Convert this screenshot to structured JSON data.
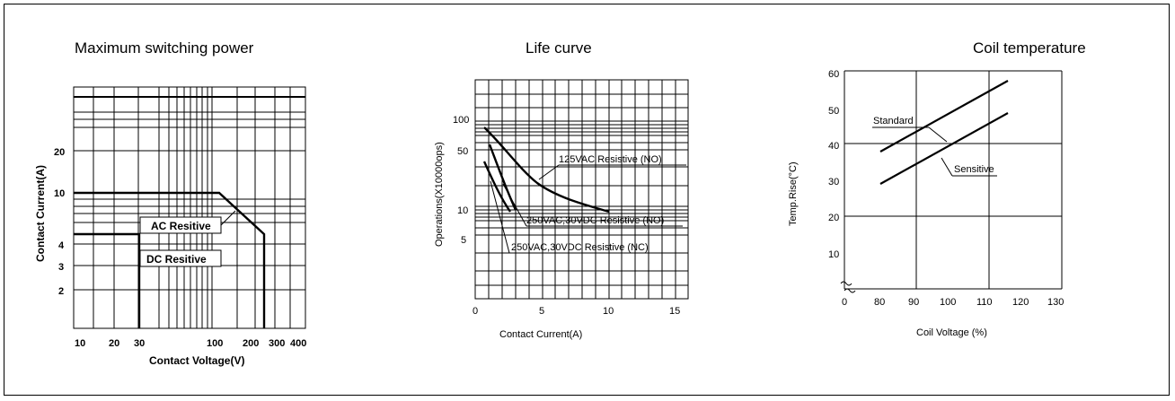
{
  "chart_data": [
    {
      "type": "line",
      "title": "Maximum switching power",
      "xlabel": "Contact Voltage(V)",
      "ylabel": "Contact Current(A)",
      "x_scale": "log",
      "y_scale": "log",
      "xticks": [
        "10",
        "20",
        "30",
        "100",
        "200",
        "300",
        "400"
      ],
      "yticks": [
        "20",
        "10",
        "4",
        "3",
        "2"
      ],
      "series": [
        {
          "name": "AC Resitive",
          "x": [
            10,
            120,
            250,
            250
          ],
          "y": [
            10,
            10,
            5,
            1
          ]
        },
        {
          "name": "DC Resitive",
          "x": [
            10,
            30,
            30
          ],
          "y": [
            5,
            5,
            1
          ]
        }
      ]
    },
    {
      "type": "line",
      "title": "Life curve",
      "xlabel": "Contact Current(A)",
      "ylabel": "Operations(X10000ops)",
      "y_scale": "log",
      "xticks": [
        "0",
        "5",
        "10",
        "15"
      ],
      "yticks": [
        "100",
        "50",
        "10",
        "5"
      ],
      "series": [
        {
          "name": "125VAC Resistive (NO)",
          "x": [
            0.5,
            2,
            3.5,
            5,
            7,
            10
          ],
          "y": [
            80,
            50,
            30,
            20,
            15,
            10
          ]
        },
        {
          "name": "250VAC,30VDC Resistive (NO)",
          "x": [
            0.8,
            1.5,
            2.5,
            3.2
          ],
          "y": [
            55,
            30,
            15,
            10
          ]
        },
        {
          "name": "250VAC,30VDC Resistive (NC)",
          "x": [
            0.5,
            1.2,
            2.0,
            2.8
          ],
          "y": [
            35,
            20,
            12,
            10
          ]
        }
      ]
    },
    {
      "type": "line",
      "title": "Coil temperature",
      "xlabel": "Coil Voltage (%)",
      "ylabel": "Temp.Rise(°C)",
      "xlim": [
        0,
        130
      ],
      "ylim": [
        0,
        60
      ],
      "xticks": [
        "0",
        "80",
        "90",
        "100",
        "110",
        "120",
        "130"
      ],
      "yticks": [
        "60",
        "50",
        "40",
        "30",
        "20",
        "10"
      ],
      "series": [
        {
          "name": "Standard",
          "x": [
            80,
            121
          ],
          "y": [
            38,
            57
          ]
        },
        {
          "name": "Sensitive",
          "x": [
            80,
            121
          ],
          "y": [
            29,
            48
          ]
        }
      ]
    }
  ]
}
